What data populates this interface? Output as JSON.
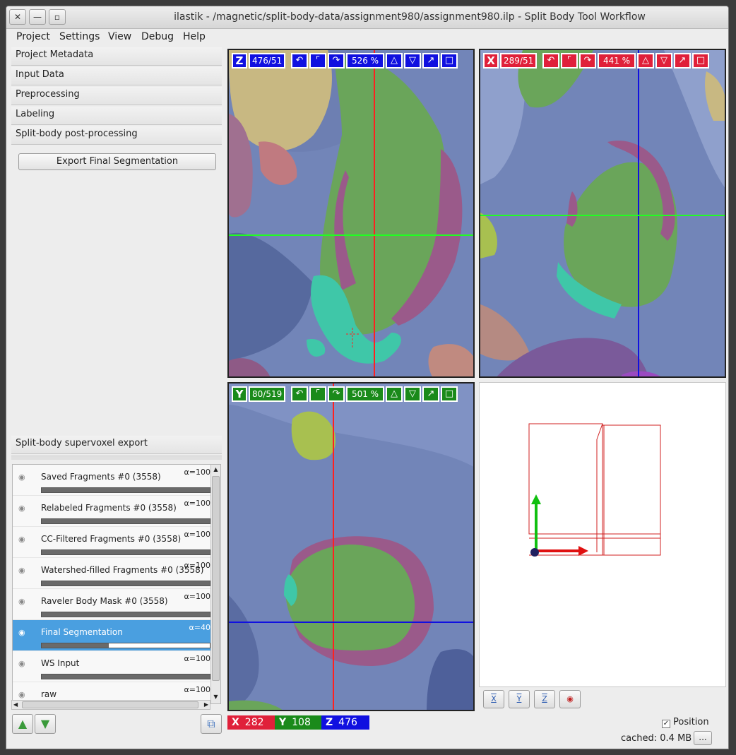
{
  "window": {
    "title": "ilastik - /magnetic/split-body-data/assignment980/assignment980.ilp - Split Body Tool Workflow",
    "close_label": "✕",
    "minimize_label": "—",
    "maximize_label": "▫"
  },
  "menubar": [
    "Project",
    "Settings",
    "View",
    "Debug",
    "Help"
  ],
  "applets": [
    "Project Metadata",
    "Input Data",
    "Preprocessing",
    "Labeling",
    "Split-body post-processing"
  ],
  "export_button": "Export Final Segmentation",
  "export_applet": "Split-body supervoxel export",
  "layers": [
    {
      "name": "Saved Fragments #0 (3558)",
      "alpha": "α=100",
      "opacity": 1.0,
      "visible": true,
      "selected": false
    },
    {
      "name": "Relabeled Fragments #0 (3558)",
      "alpha": "α=100",
      "opacity": 1.0,
      "visible": true,
      "selected": false
    },
    {
      "name": "CC-Filtered Fragments #0 (3558)",
      "alpha": "α=100",
      "opacity": 1.0,
      "visible": true,
      "selected": false
    },
    {
      "name": "Watershed-filled Fragments #0 (3558)",
      "alpha": "α=100",
      "opacity": 1.0,
      "visible": true,
      "selected": false
    },
    {
      "name": "Raveler Body Mask #0 (3558)",
      "alpha": "α=100",
      "opacity": 1.0,
      "visible": true,
      "selected": false
    },
    {
      "name": "Final Segmentation",
      "alpha": "α=40",
      "opacity": 0.4,
      "visible": true,
      "selected": true
    },
    {
      "name": "WS Input",
      "alpha": "α=100",
      "opacity": 1.0,
      "visible": true,
      "selected": false
    },
    {
      "name": "raw",
      "alpha": "α=100",
      "opacity": 1.0,
      "visible": true,
      "selected": false
    }
  ],
  "views": {
    "z": {
      "axis": "Z",
      "slice": "476/51",
      "zoom": "526 %",
      "color": "#1010e0"
    },
    "x": {
      "axis": "X",
      "slice": "289/51",
      "zoom": "441 %",
      "color": "#e0203a"
    },
    "y": {
      "axis": "Y",
      "slice": "80/519",
      "zoom": "501 %",
      "color": "#1a8a1a"
    }
  },
  "view3d_buttons": [
    "X",
    "Y",
    "Z",
    "◉"
  ],
  "coords": {
    "x_label": "X",
    "x": "282",
    "y_label": "Y",
    "y": "108",
    "z_label": "Z",
    "z": "476"
  },
  "position_label": "Position",
  "position_checked": true,
  "cached": "cached: 0.4 MB",
  "cached_button": "...",
  "colors": {
    "blue_region": "#6a7fb8",
    "green_region": "#6aa55a",
    "teal_region": "#3fc7a8",
    "purple_region": "#9a5a8a",
    "yellow_region": "#c9b880",
    "crosshair_red": "#ff2020",
    "crosshair_green": "#20ff20",
    "crosshair_blue": "#1010e0"
  }
}
